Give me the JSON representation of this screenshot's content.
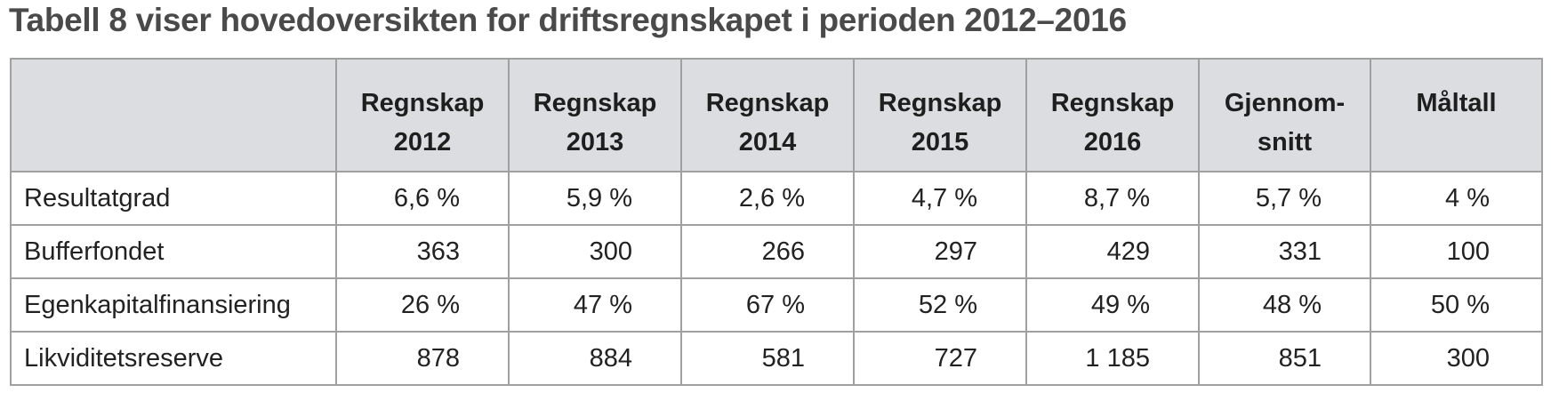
{
  "caption": "Tabell 8 viser hovedoversikten for driftsregnskapet i perioden 2012–2016",
  "table": {
    "columns": [
      {
        "line1": "Regnskap",
        "line2": "2012"
      },
      {
        "line1": "Regnskap",
        "line2": "2013"
      },
      {
        "line1": "Regnskap",
        "line2": "2014"
      },
      {
        "line1": "Regnskap",
        "line2": "2015"
      },
      {
        "line1": "Regnskap",
        "line2": "2016"
      },
      {
        "line1": "Gjennom-",
        "line2": "snitt"
      },
      {
        "line1": "Måltall",
        "line2": ""
      }
    ],
    "rows": [
      {
        "label": "Resultatgrad",
        "values": [
          "6,6 %",
          "5,9 %",
          "2,6 %",
          "4,7 %",
          "8,7 %",
          "5,7 %",
          "4 %"
        ]
      },
      {
        "label": "Bufferfondet",
        "values": [
          "363",
          "300",
          "266",
          "297",
          "429",
          "331",
          "100"
        ]
      },
      {
        "label": "Egenkapitalfinansiering",
        "values": [
          "26 %",
          "47 %",
          "67 %",
          "52 %",
          "49 %",
          "48 %",
          "50 %"
        ]
      },
      {
        "label": "Likviditetsreserve",
        "values": [
          "878",
          "884",
          "581",
          "727",
          "1 185",
          "851",
          "300"
        ]
      }
    ]
  }
}
